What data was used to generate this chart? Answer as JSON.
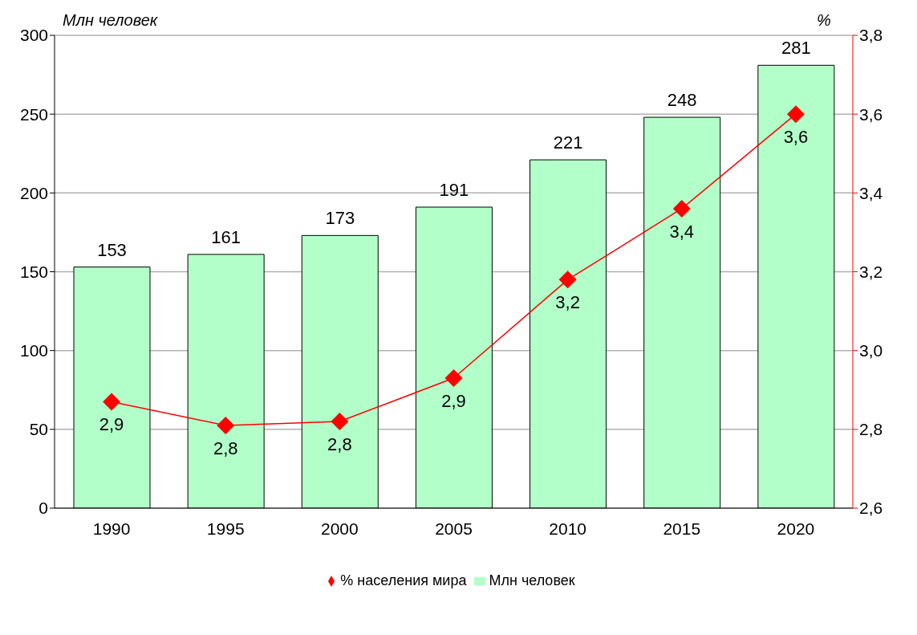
{
  "chart_data": {
    "type": "bar",
    "categories": [
      "1990",
      "1995",
      "2000",
      "2005",
      "2010",
      "2015",
      "2020"
    ],
    "series": [
      {
        "name": "Млн человек",
        "color": "#b3ffc9",
        "values": [
          153,
          161,
          173,
          191,
          221,
          248,
          281
        ]
      },
      {
        "name": "% населения мира",
        "type": "line",
        "axis": "y2",
        "color": "#ff0000",
        "values": [
          2.87,
          2.81,
          2.82,
          2.93,
          3.18,
          3.36,
          3.6
        ],
        "value_labels": [
          "2,9",
          "2,8",
          "2,8",
          "2,9",
          "3,2",
          "3,4",
          "3,6"
        ]
      }
    ],
    "ylabel": "Млн человек",
    "y2label": "%",
    "ylim": [
      0,
      300
    ],
    "yticks": [
      0,
      50,
      100,
      150,
      200,
      250,
      300
    ],
    "y2lim": [
      2.6,
      3.8
    ],
    "y2ticks": [
      {
        "value": 2.6,
        "label": "2,6"
      },
      {
        "value": 2.8,
        "label": "2,8"
      },
      {
        "value": 3.0,
        "label": "3,0"
      },
      {
        "value": 3.2,
        "label": "3,2"
      },
      {
        "value": 3.4,
        "label": "3,4"
      },
      {
        "value": 3.6,
        "label": "3,6"
      },
      {
        "value": 3.8,
        "label": "3,8"
      }
    ],
    "grid": "y",
    "legend": "bottom",
    "marker": "diamond",
    "line_style": "solid",
    "data_labels": true
  }
}
